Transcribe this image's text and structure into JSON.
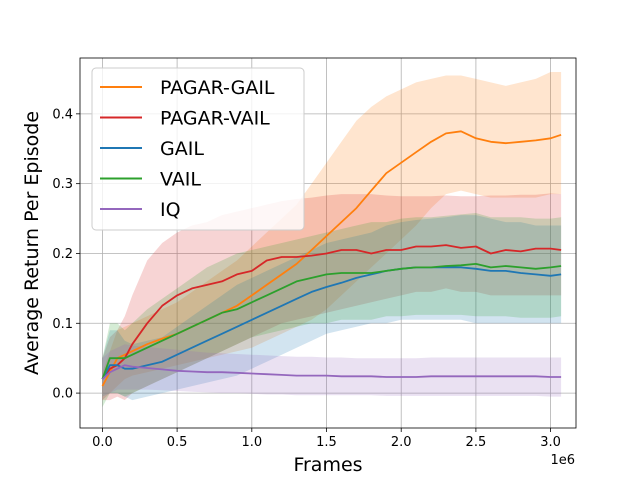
{
  "chart_data": {
    "type": "line",
    "title": "",
    "xlabel": "Frames",
    "ylabel": "Average Return Per Episode",
    "x_offset_label": "1e6",
    "xlim": [
      -0.15,
      3.17
    ],
    "ylim": [
      -0.05,
      0.48
    ],
    "xticks": [
      0.0,
      0.5,
      1.0,
      1.5,
      2.0,
      2.5,
      3.0
    ],
    "xtick_labels": [
      "0.0",
      "0.5",
      "1.0",
      "1.5",
      "2.0",
      "2.5",
      "3.0"
    ],
    "yticks": [
      0.0,
      0.1,
      0.2,
      0.3,
      0.4
    ],
    "ytick_labels": [
      "0.0",
      "0.1",
      "0.2",
      "0.3",
      "0.4"
    ],
    "grid": true,
    "legend_position": "top-left",
    "series": [
      {
        "name": "PAGAR-GAIL",
        "color": "#ff7f0e",
        "x": [
          0.0,
          0.05,
          0.1,
          0.15,
          0.2,
          0.3,
          0.4,
          0.5,
          0.6,
          0.7,
          0.8,
          0.9,
          1.0,
          1.1,
          1.2,
          1.3,
          1.4,
          1.5,
          1.6,
          1.7,
          1.8,
          1.9,
          2.0,
          2.1,
          2.2,
          2.3,
          2.4,
          2.5,
          2.6,
          2.7,
          2.8,
          2.9,
          3.0,
          3.07
        ],
        "y": [
          0.01,
          0.03,
          0.05,
          0.055,
          0.06,
          0.07,
          0.078,
          0.085,
          0.095,
          0.105,
          0.115,
          0.125,
          0.14,
          0.155,
          0.17,
          0.185,
          0.205,
          0.225,
          0.245,
          0.265,
          0.29,
          0.315,
          0.33,
          0.345,
          0.36,
          0.372,
          0.375,
          0.365,
          0.36,
          0.358,
          0.36,
          0.362,
          0.365,
          0.37
        ],
        "lower": [
          -0.01,
          0.0,
          0.01,
          0.02,
          0.025,
          0.03,
          0.035,
          0.04,
          0.045,
          0.05,
          0.055,
          0.06,
          0.065,
          0.075,
          0.085,
          0.095,
          0.105,
          0.12,
          0.14,
          0.16,
          0.18,
          0.2,
          0.22,
          0.24,
          0.265,
          0.285,
          0.29,
          0.285,
          0.28,
          0.28,
          0.28,
          0.28,
          0.285,
          0.285
        ],
        "upper": [
          0.03,
          0.06,
          0.09,
          0.095,
          0.1,
          0.11,
          0.12,
          0.13,
          0.145,
          0.16,
          0.175,
          0.19,
          0.21,
          0.23,
          0.25,
          0.27,
          0.3,
          0.33,
          0.36,
          0.39,
          0.41,
          0.425,
          0.435,
          0.445,
          0.45,
          0.455,
          0.455,
          0.45,
          0.445,
          0.44,
          0.445,
          0.45,
          0.46,
          0.46
        ]
      },
      {
        "name": "PAGAR-VAIL",
        "color": "#d62728",
        "x": [
          0.0,
          0.05,
          0.1,
          0.15,
          0.2,
          0.3,
          0.4,
          0.5,
          0.6,
          0.7,
          0.8,
          0.9,
          1.0,
          1.1,
          1.2,
          1.3,
          1.4,
          1.5,
          1.6,
          1.7,
          1.8,
          1.9,
          2.0,
          2.1,
          2.2,
          2.3,
          2.4,
          2.5,
          2.6,
          2.7,
          2.8,
          2.9,
          3.0,
          3.07
        ],
        "y": [
          0.02,
          0.035,
          0.04,
          0.05,
          0.07,
          0.1,
          0.125,
          0.14,
          0.15,
          0.155,
          0.16,
          0.17,
          0.175,
          0.19,
          0.195,
          0.195,
          0.197,
          0.2,
          0.205,
          0.205,
          0.2,
          0.205,
          0.205,
          0.21,
          0.21,
          0.212,
          0.208,
          0.21,
          0.2,
          0.205,
          0.203,
          0.207,
          0.207,
          0.205
        ],
        "lower": [
          -0.01,
          -0.01,
          -0.005,
          -0.01,
          0.0,
          0.01,
          0.02,
          0.03,
          0.04,
          0.05,
          0.06,
          0.07,
          0.08,
          0.09,
          0.1,
          0.105,
          0.11,
          0.115,
          0.12,
          0.125,
          0.13,
          0.135,
          0.14,
          0.145,
          0.145,
          0.15,
          0.145,
          0.145,
          0.14,
          0.14,
          0.14,
          0.14,
          0.14,
          0.14
        ],
        "upper": [
          0.05,
          0.08,
          0.09,
          0.11,
          0.14,
          0.19,
          0.215,
          0.23,
          0.24,
          0.245,
          0.255,
          0.26,
          0.265,
          0.27,
          0.275,
          0.278,
          0.28,
          0.283,
          0.285,
          0.285,
          0.285,
          0.283,
          0.282,
          0.282,
          0.282,
          0.283,
          0.282,
          0.282,
          0.283,
          0.283,
          0.284,
          0.284,
          0.286,
          0.285
        ]
      },
      {
        "name": "GAIL",
        "color": "#1f77b4",
        "x": [
          0.0,
          0.05,
          0.1,
          0.15,
          0.2,
          0.3,
          0.4,
          0.5,
          0.6,
          0.7,
          0.8,
          0.9,
          1.0,
          1.1,
          1.2,
          1.3,
          1.4,
          1.5,
          1.6,
          1.7,
          1.8,
          1.9,
          2.0,
          2.1,
          2.2,
          2.3,
          2.4,
          2.5,
          2.6,
          2.7,
          2.8,
          2.9,
          3.0,
          3.07
        ],
        "y": [
          0.02,
          0.04,
          0.04,
          0.035,
          0.035,
          0.04,
          0.045,
          0.055,
          0.065,
          0.075,
          0.085,
          0.095,
          0.105,
          0.115,
          0.125,
          0.135,
          0.145,
          0.152,
          0.158,
          0.165,
          0.17,
          0.175,
          0.178,
          0.18,
          0.18,
          0.18,
          0.18,
          0.178,
          0.175,
          0.175,
          0.172,
          0.17,
          0.168,
          0.17
        ],
        "lower": [
          -0.005,
          0.0,
          0.0,
          -0.005,
          -0.01,
          -0.005,
          0.0,
          0.005,
          0.01,
          0.015,
          0.02,
          0.025,
          0.035,
          0.045,
          0.055,
          0.065,
          0.075,
          0.085,
          0.09,
          0.095,
          0.1,
          0.1,
          0.105,
          0.105,
          0.105,
          0.105,
          0.105,
          0.1,
          0.1,
          0.1,
          0.1,
          0.1,
          0.1,
          0.1
        ],
        "upper": [
          0.05,
          0.09,
          0.09,
          0.075,
          0.07,
          0.075,
          0.08,
          0.095,
          0.11,
          0.125,
          0.14,
          0.155,
          0.165,
          0.175,
          0.185,
          0.195,
          0.205,
          0.215,
          0.22,
          0.225,
          0.23,
          0.24,
          0.245,
          0.248,
          0.25,
          0.252,
          0.255,
          0.255,
          0.25,
          0.245,
          0.245,
          0.24,
          0.24,
          0.24
        ]
      },
      {
        "name": "VAIL",
        "color": "#2ca02c",
        "x": [
          0.0,
          0.05,
          0.1,
          0.15,
          0.2,
          0.3,
          0.4,
          0.5,
          0.6,
          0.7,
          0.8,
          0.9,
          1.0,
          1.1,
          1.2,
          1.3,
          1.4,
          1.5,
          1.6,
          1.7,
          1.8,
          1.9,
          2.0,
          2.1,
          2.2,
          2.3,
          2.4,
          2.5,
          2.6,
          2.7,
          2.8,
          2.9,
          3.0,
          3.07
        ],
        "y": [
          0.02,
          0.05,
          0.05,
          0.05,
          0.055,
          0.065,
          0.075,
          0.085,
          0.095,
          0.105,
          0.115,
          0.12,
          0.13,
          0.14,
          0.15,
          0.16,
          0.165,
          0.17,
          0.172,
          0.172,
          0.172,
          0.175,
          0.178,
          0.18,
          0.18,
          0.182,
          0.183,
          0.185,
          0.18,
          0.182,
          0.18,
          0.178,
          0.18,
          0.182
        ],
        "lower": [
          -0.02,
          0.0,
          0.0,
          -0.005,
          0.0,
          0.01,
          0.02,
          0.03,
          0.04,
          0.05,
          0.06,
          0.07,
          0.08,
          0.085,
          0.09,
          0.095,
          0.1,
          0.1,
          0.105,
          0.105,
          0.105,
          0.11,
          0.11,
          0.112,
          0.112,
          0.112,
          0.112,
          0.11,
          0.11,
          0.11,
          0.108,
          0.108,
          0.108,
          0.11
        ],
        "upper": [
          0.05,
          0.1,
          0.1,
          0.09,
          0.1,
          0.12,
          0.135,
          0.15,
          0.165,
          0.18,
          0.19,
          0.2,
          0.205,
          0.21,
          0.215,
          0.22,
          0.225,
          0.23,
          0.235,
          0.24,
          0.245,
          0.245,
          0.25,
          0.252,
          0.252,
          0.254,
          0.256,
          0.258,
          0.252,
          0.252,
          0.252,
          0.25,
          0.25,
          0.252
        ]
      },
      {
        "name": "IQ",
        "color": "#9467bd",
        "x": [
          0.0,
          0.05,
          0.1,
          0.15,
          0.2,
          0.3,
          0.4,
          0.5,
          0.6,
          0.7,
          0.8,
          0.9,
          1.0,
          1.1,
          1.2,
          1.3,
          1.4,
          1.5,
          1.6,
          1.7,
          1.8,
          1.9,
          2.0,
          2.1,
          2.2,
          2.3,
          2.4,
          2.5,
          2.6,
          2.7,
          2.8,
          2.9,
          3.0,
          3.07
        ],
        "y": [
          0.02,
          0.03,
          0.035,
          0.04,
          0.038,
          0.036,
          0.034,
          0.032,
          0.031,
          0.03,
          0.03,
          0.029,
          0.028,
          0.027,
          0.026,
          0.025,
          0.025,
          0.025,
          0.024,
          0.024,
          0.024,
          0.023,
          0.023,
          0.023,
          0.024,
          0.024,
          0.024,
          0.024,
          0.024,
          0.024,
          0.024,
          0.024,
          0.023,
          0.023
        ],
        "lower": [
          -0.01,
          0.0,
          0.005,
          0.005,
          0.005,
          0.005,
          0.004,
          0.003,
          0.002,
          0.001,
          0.0,
          0.0,
          -0.001,
          -0.002,
          -0.002,
          -0.003,
          -0.003,
          -0.003,
          -0.003,
          -0.003,
          -0.003,
          -0.004,
          -0.004,
          -0.004,
          -0.004,
          -0.004,
          -0.004,
          -0.004,
          -0.004,
          -0.004,
          -0.004,
          -0.004,
          -0.005,
          -0.005
        ],
        "upper": [
          0.05,
          0.06,
          0.065,
          0.07,
          0.068,
          0.066,
          0.064,
          0.062,
          0.06,
          0.058,
          0.057,
          0.056,
          0.055,
          0.054,
          0.053,
          0.052,
          0.052,
          0.051,
          0.051,
          0.05,
          0.05,
          0.05,
          0.05,
          0.05,
          0.051,
          0.051,
          0.051,
          0.051,
          0.051,
          0.051,
          0.051,
          0.051,
          0.051,
          0.051
        ]
      }
    ]
  }
}
